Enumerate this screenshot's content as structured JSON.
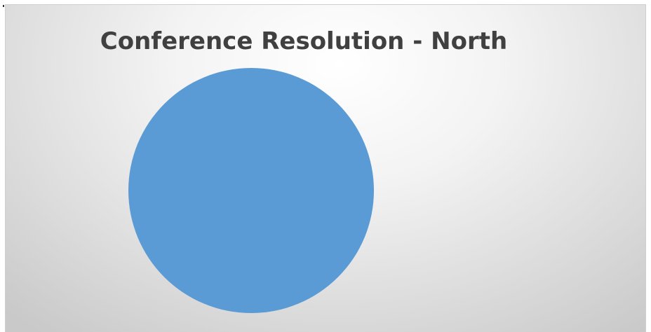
{
  "chart_data": {
    "type": "pie",
    "title": "Conference Resolution - North",
    "categories": [
      ""
    ],
    "values": [
      100
    ],
    "colors": [
      "#5b9bd5"
    ],
    "legend": "none"
  }
}
